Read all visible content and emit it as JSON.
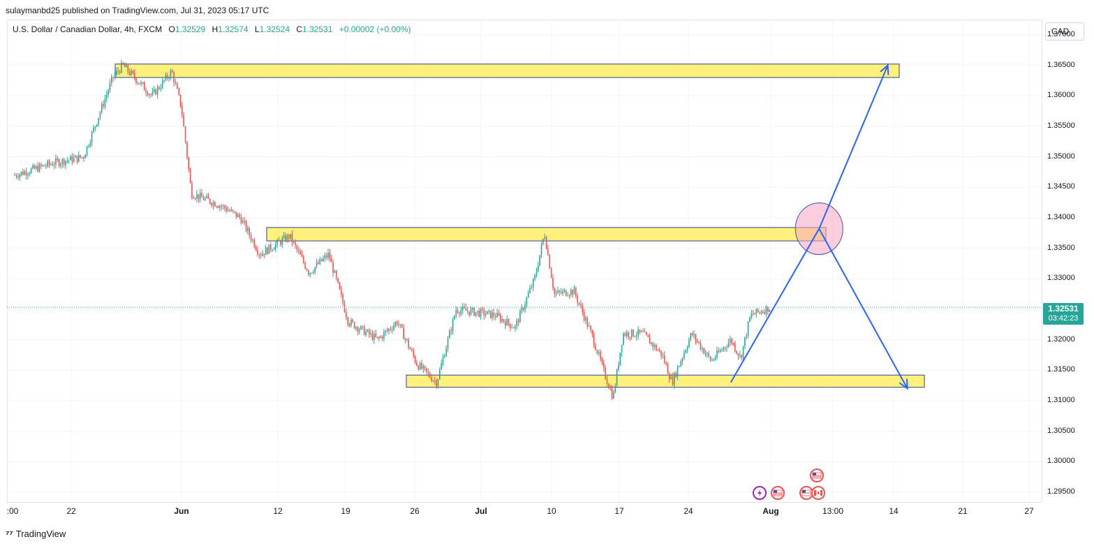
{
  "header": {
    "publisher": "sulaymanbd25 published on TradingView.com, Jul 31, 2023 05:17 UTC"
  },
  "legend": {
    "symbol": "U.S. Dollar / Canadian Dollar, 4h, FXCM",
    "open_label": "O",
    "open": "1.32529",
    "high_label": "H",
    "high": "1.32574",
    "low_label": "L",
    "low": "1.32524",
    "close_label": "C",
    "close": "1.32531",
    "change": "+0.00002 (+0.00%)"
  },
  "currency_button": "CAD",
  "last_price": {
    "price": "1.32531",
    "countdown": "03:42:23",
    "color": "#26a69a"
  },
  "footer": {
    "brand": "TradingView",
    "logo_icon": "tradingview-logo-icon"
  },
  "colors": {
    "up": "#26a69a",
    "down": "#ef5350",
    "zone_fill": "#fff176",
    "zone_border": "#1e3a8a",
    "arrow": "#2962ff",
    "circle": "#f8a5c2"
  },
  "event_icons": [
    "flash-event-icon",
    "us-flag-icon",
    "us-flag-icon",
    "us-flag-icon",
    "canada-flag-icon"
  ],
  "chart_data": {
    "type": "candlestick",
    "y_axis_ticks": [
      "1.29500",
      "1.30000",
      "1.30500",
      "1.31000",
      "1.31500",
      "1.32000",
      "1.32500",
      "1.33000",
      "1.33500",
      "1.34000",
      "1.34500",
      "1.35000",
      "1.35500",
      "1.36000",
      "1.36500",
      "1.37000"
    ],
    "x_axis_ticks": [
      ":00",
      "22",
      "Jun",
      "12",
      "19",
      "26",
      "Jul",
      "10",
      "17",
      "24",
      "Aug",
      "13:00",
      "14",
      "21",
      "27"
    ],
    "ylim": [
      1.2935,
      1.3725
    ],
    "zones": [
      {
        "from": 1.363,
        "to": 1.3652
      },
      {
        "from": 1.3362,
        "to": 1.3384
      },
      {
        "from": 1.3122,
        "to": 1.3142
      }
    ],
    "anchors": [
      {
        "date": "May 15",
        "price": 1.347
      },
      {
        "date": "May 19",
        "price": 1.349
      },
      {
        "date": "May 22",
        "price": 1.35
      },
      {
        "date": "May 25",
        "price": 1.363
      },
      {
        "date": "May 26",
        "price": 1.365
      },
      {
        "date": "May 29",
        "price": 1.36
      },
      {
        "date": "May 31",
        "price": 1.364
      },
      {
        "date": "Jun 1",
        "price": 1.358
      },
      {
        "date": "Jun 2",
        "price": 1.344
      },
      {
        "date": "Jun 5",
        "price": 1.342
      },
      {
        "date": "Jun 7",
        "price": 1.34
      },
      {
        "date": "Jun 9",
        "price": 1.334
      },
      {
        "date": "Jun 12",
        "price": 1.337
      },
      {
        "date": "Jun 14",
        "price": 1.331
      },
      {
        "date": "Jun 16",
        "price": 1.334
      },
      {
        "date": "Jun 18",
        "price": 1.323
      },
      {
        "date": "Jun 21",
        "price": 1.32
      },
      {
        "date": "Jun 23",
        "price": 1.323
      },
      {
        "date": "Jun 25",
        "price": 1.316
      },
      {
        "date": "Jun 27",
        "price": 1.313
      },
      {
        "date": "Jun 29",
        "price": 1.325
      },
      {
        "date": "Jul 3",
        "price": 1.324
      },
      {
        "date": "Jul 5",
        "price": 1.322
      },
      {
        "date": "Jul 7",
        "price": 1.33
      },
      {
        "date": "Jul 8",
        "price": 1.3375
      },
      {
        "date": "Jul 9",
        "price": 1.3275
      },
      {
        "date": "Jul 11",
        "price": 1.328
      },
      {
        "date": "Jul 13",
        "price": 1.32
      },
      {
        "date": "Jul 14",
        "price": 1.315
      },
      {
        "date": "Jul 15",
        "price": 1.3105
      },
      {
        "date": "Jul 16",
        "price": 1.321
      },
      {
        "date": "Jul 18",
        "price": 1.321
      },
      {
        "date": "Jul 20",
        "price": 1.3175
      },
      {
        "date": "Jul 21",
        "price": 1.313
      },
      {
        "date": "Jul 23",
        "price": 1.321
      },
      {
        "date": "Jul 25",
        "price": 1.3165
      },
      {
        "date": "Jul 27",
        "price": 1.32
      },
      {
        "date": "Jul 28",
        "price": 1.317
      },
      {
        "date": "Jul 29",
        "price": 1.324
      },
      {
        "date": "Jul 31",
        "price": 1.3253
      }
    ],
    "projection": [
      {
        "date": "Jul 27",
        "price": 1.313
      },
      {
        "date": "Aug 5",
        "price": 1.3382
      },
      {
        "date": "Aug 12",
        "price": 1.365
      },
      {
        "date": "Aug 5 ",
        "price": 1.3382
      },
      {
        "date": "Aug 14",
        "price": 1.312
      }
    ]
  }
}
